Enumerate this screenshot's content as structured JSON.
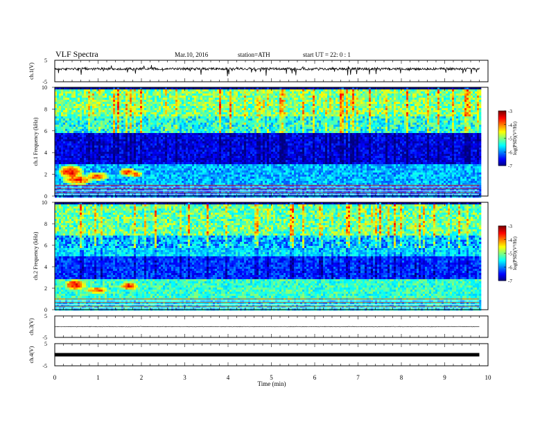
{
  "header": {
    "title": "VLF Spectra",
    "date": "Mar.10, 2016",
    "station": "station=ATH",
    "start": "start UT =  22: 0 : 1"
  },
  "chart_data": [
    {
      "type": "line",
      "panel": "ch1-waveform",
      "ylabel": "ch.1(V)",
      "ylim": [
        -5,
        5
      ],
      "yticks": [
        "5",
        "-5"
      ],
      "x_range_min": [
        0,
        9.8
      ],
      "baseline_v": 1.0,
      "noise": "spiky"
    },
    {
      "type": "heatmap",
      "panel": "ch1-spectrogram",
      "ylabel": "ch.1 Frequency (kHz)",
      "ylim": [
        0,
        10
      ],
      "yticks": [
        "0",
        "2",
        "4",
        "6",
        "8",
        "10"
      ],
      "colorbar": {
        "label": "log(PSD)(V²/Hz)",
        "range": [
          -7,
          -3
        ],
        "ticks": [
          "-3",
          "-4",
          "-5",
          "-6",
          "-7"
        ]
      },
      "bands": [
        {
          "from_khz": 0,
          "to_khz": 1.2,
          "level": -6.0
        },
        {
          "from_khz": 1.2,
          "to_khz": 3.0,
          "level": -5.8
        },
        {
          "from_khz": 3.0,
          "to_khz": 5.8,
          "level": -6.6
        },
        {
          "from_khz": 5.8,
          "to_khz": 7.5,
          "level": -5.2
        },
        {
          "from_khz": 7.5,
          "to_khz": 10,
          "level": -4.8
        }
      ],
      "bursts": [
        {
          "t_min": 0.35,
          "f_khz": 2.3,
          "dt": 0.25,
          "df": 0.55,
          "level": -3.5
        },
        {
          "t_min": 0.5,
          "f_khz": 1.6,
          "dt": 0.3,
          "df": 0.4,
          "level": -3.6
        },
        {
          "t_min": 0.95,
          "f_khz": 1.9,
          "dt": 0.25,
          "df": 0.35,
          "level": -3.8
        },
        {
          "t_min": 1.65,
          "f_khz": 2.3,
          "dt": 0.15,
          "df": 0.35,
          "level": -3.6
        },
        {
          "t_min": 1.85,
          "f_khz": 2.1,
          "dt": 0.15,
          "df": 0.3,
          "level": -3.9
        }
      ]
    },
    {
      "type": "heatmap",
      "panel": "ch2-spectrogram",
      "ylabel": "ch.2 Frequency (kHz)",
      "ylim": [
        0,
        10
      ],
      "yticks": [
        "0",
        "2",
        "4",
        "6",
        "8",
        "10"
      ],
      "colorbar": {
        "label": "log(PSD)(V²/Hz)",
        "range": [
          -7,
          -3
        ],
        "ticks": [
          "-3",
          "-4",
          "-5",
          "-6",
          "-7"
        ]
      },
      "bands": [
        {
          "from_khz": 0,
          "to_khz": 1.0,
          "level": -5.6
        },
        {
          "from_khz": 1.0,
          "to_khz": 3.0,
          "level": -5.3
        },
        {
          "from_khz": 3.0,
          "to_khz": 5.0,
          "level": -6.3
        },
        {
          "from_khz": 5.0,
          "to_khz": 7.0,
          "level": -5.6
        },
        {
          "from_khz": 7.0,
          "to_khz": 10,
          "level": -4.9
        }
      ],
      "bursts": [
        {
          "t_min": 0.45,
          "f_khz": 2.4,
          "dt": 0.22,
          "df": 0.45,
          "level": -3.5
        },
        {
          "t_min": 0.95,
          "f_khz": 1.9,
          "dt": 0.25,
          "df": 0.3,
          "level": -3.8
        },
        {
          "t_min": 1.7,
          "f_khz": 2.3,
          "dt": 0.2,
          "df": 0.35,
          "level": -3.6
        }
      ]
    },
    {
      "type": "line",
      "panel": "ch3-waveform",
      "ylabel": "ch.3(V)",
      "ylim": [
        -5,
        5
      ],
      "yticks": [
        "5",
        "-5"
      ],
      "baseline_v": 0.0,
      "noise": "flat"
    },
    {
      "type": "line",
      "panel": "ch4-waveform",
      "ylabel": "ch.4(V)",
      "ylim": [
        -5,
        5
      ],
      "yticks": [
        "5",
        "-5"
      ],
      "baseline_v": 0.0,
      "noise": "thick"
    }
  ],
  "x_axis": {
    "label": "Time  (min)",
    "range": [
      0,
      10
    ],
    "ticks": [
      "0",
      "1",
      "2",
      "3",
      "4",
      "5",
      "6",
      "7",
      "8",
      "9",
      "10"
    ]
  },
  "colors": {
    "axis": "#000000",
    "trace": "#000000"
  }
}
